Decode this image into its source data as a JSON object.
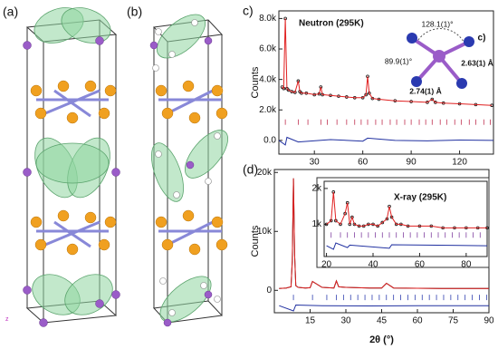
{
  "panels": {
    "a": "(a)",
    "b": "(b)",
    "c": "c)",
    "d": "(d)"
  },
  "chart_data": [
    {
      "type": "line",
      "title": "Neutron (295K)",
      "ylabel": "Counts",
      "annotations": [
        "128.1(1)°",
        "89.9(1)°",
        "2.63(1) Å",
        "2.74(1) Å",
        "c)"
      ],
      "xlim": [
        8,
        141
      ],
      "ylim": [
        -900,
        8500
      ],
      "xticks": [
        30,
        60,
        90,
        120
      ],
      "yticks": [
        {
          "value": 0,
          "label": "0.0"
        },
        {
          "value": 2000,
          "label": "2.0k"
        },
        {
          "value": 4000,
          "label": "4.0k"
        },
        {
          "value": 6000,
          "label": "6.0k"
        },
        {
          "value": 8000,
          "label": "8.0k"
        }
      ],
      "series": [
        {
          "kind": "scatter",
          "color": "#111111",
          "x": [
            10,
            11,
            12,
            13,
            14,
            16,
            18,
            20,
            21,
            22,
            25,
            30,
            33,
            34,
            35,
            40,
            45,
            50,
            55,
            60,
            62,
            63,
            64,
            66,
            70,
            80,
            90,
            100,
            103,
            105,
            110,
            120,
            130,
            140
          ],
          "values": [
            3500,
            3400,
            8000,
            3400,
            3300,
            3200,
            3150,
            3900,
            3200,
            3100,
            3100,
            3000,
            3050,
            3500,
            3000,
            2950,
            2900,
            2850,
            2800,
            2800,
            3000,
            4200,
            3100,
            2750,
            2700,
            2600,
            2550,
            2500,
            2700,
            2500,
            2450,
            2400,
            2350,
            2300
          ]
        },
        {
          "kind": "line",
          "color": "#e02020",
          "x": [
            10,
            11,
            12,
            13,
            14,
            16,
            18,
            20,
            21,
            22,
            25,
            30,
            33,
            34,
            35,
            40,
            45,
            50,
            55,
            60,
            62,
            63,
            64,
            66,
            70,
            80,
            90,
            100,
            103,
            105,
            110,
            120,
            130,
            140
          ],
          "values": [
            3500,
            3400,
            8000,
            3400,
            3300,
            3200,
            3150,
            3900,
            3200,
            3100,
            3100,
            3000,
            3050,
            3500,
            3000,
            2950,
            2900,
            2850,
            2800,
            2800,
            3000,
            4200,
            3100,
            2750,
            2700,
            2600,
            2550,
            2500,
            2700,
            2500,
            2450,
            2400,
            2350,
            2300
          ]
        },
        {
          "kind": "ticks",
          "color": "#c03050",
          "x": [
            12,
            20,
            26,
            34,
            38,
            44,
            50,
            55,
            59,
            63,
            68,
            72,
            77,
            81,
            86,
            90,
            95,
            99,
            103,
            108,
            112,
            117,
            121,
            126,
            130,
            135,
            139
          ],
          "values": [
            1200,
            1200,
            1200,
            1200,
            1200,
            1200,
            1200,
            1200,
            1200,
            1200,
            1200,
            1200,
            1200,
            1200,
            1200,
            1200,
            1200,
            1200,
            1200,
            1200,
            1200,
            1200,
            1200,
            1200,
            1200,
            1200,
            1200
          ]
        },
        {
          "kind": "line",
          "color": "#2030a0",
          "x": [
            8,
            12,
            13,
            20,
            40,
            60,
            63,
            80,
            100,
            120,
            141
          ],
          "values": [
            0,
            -300,
            200,
            -100,
            50,
            -50,
            150,
            0,
            -30,
            20,
            0
          ]
        }
      ]
    },
    {
      "type": "line",
      "ylabel": "Counts",
      "xlabel": "2θ (°)",
      "xlim": [
        0,
        90
      ],
      "ylim": [
        -3800,
        20500
      ],
      "xticks": [
        15,
        30,
        45,
        60,
        75,
        90
      ],
      "yticks": [
        0,
        {
          "value": 10000,
          "label": "10k"
        },
        {
          "value": 20000,
          "label": "20k"
        }
      ],
      "series": [
        {
          "kind": "line",
          "color": "#111111",
          "x": [
            2,
            5,
            7,
            7.5,
            8,
            8.5,
            9,
            10,
            13,
            15,
            16,
            20,
            25,
            26,
            27,
            30,
            35,
            40,
            45,
            47,
            50,
            60,
            70,
            80,
            90
          ],
          "values": [
            300,
            400,
            600,
            5000,
            19000,
            6000,
            800,
            500,
            400,
            450,
            1500,
            500,
            400,
            1600,
            600,
            500,
            450,
            400,
            400,
            1200,
            400,
            350,
            300,
            300,
            300
          ]
        },
        {
          "kind": "line",
          "color": "#e02020",
          "x": [
            2,
            5,
            7,
            7.5,
            8,
            8.5,
            9,
            10,
            13,
            15,
            16,
            20,
            25,
            26,
            27,
            30,
            35,
            40,
            45,
            47,
            50,
            60,
            70,
            80,
            90
          ],
          "values": [
            300,
            400,
            600,
            5000,
            19000,
            6000,
            800,
            500,
            400,
            450,
            1500,
            500,
            400,
            1600,
            600,
            500,
            450,
            400,
            400,
            1200,
            400,
            350,
            300,
            300,
            300
          ]
        },
        {
          "kind": "ticks",
          "color": "#3040b0",
          "x": [
            8,
            16,
            22,
            26,
            29,
            32,
            35,
            38,
            41,
            44,
            47,
            50,
            53,
            56,
            59,
            62,
            65,
            68,
            71,
            74,
            77,
            80,
            83,
            86,
            89
          ],
          "values": [
            -1200,
            -1200,
            -1200,
            -1200,
            -1200,
            -1200,
            -1200,
            -1200,
            -1200,
            -1200,
            -1200,
            -1200,
            -1200,
            -1200,
            -1200,
            -1200,
            -1200,
            -1200,
            -1200,
            -1200,
            -1200,
            -1200,
            -1200,
            -1200,
            -1200
          ]
        },
        {
          "kind": "line",
          "color": "#2030a0",
          "x": [
            2,
            8,
            9,
            20,
            40,
            60,
            90
          ],
          "values": [
            -2600,
            -3500,
            -2500,
            -2600,
            -2650,
            -2600,
            -2600
          ]
        }
      ]
    },
    {
      "type": "line",
      "title": "X-ray (295K)",
      "xlim": [
        19,
        89
      ],
      "ylim": [
        100,
        2200
      ],
      "xticks": [
        20,
        40,
        60,
        80
      ],
      "yticks": [
        {
          "value": 1000,
          "label": "1k"
        },
        {
          "value": 2000,
          "label": "2k"
        }
      ],
      "series": [
        {
          "kind": "scatter",
          "color": "#111111",
          "x": [
            20,
            22,
            23,
            24,
            26,
            28,
            29,
            30,
            31,
            32,
            34,
            36,
            38,
            40,
            42,
            44,
            46,
            47,
            48,
            50,
            52,
            55,
            60,
            65,
            70,
            75,
            80,
            85,
            89
          ],
          "values": [
            1000,
            1100,
            1900,
            1100,
            1000,
            1300,
            1600,
            1000,
            1200,
            1000,
            950,
            950,
            1000,
            1000,
            950,
            1050,
            1150,
            1500,
            1200,
            1000,
            1000,
            950,
            950,
            950,
            900,
            900,
            900,
            900,
            900
          ]
        },
        {
          "kind": "line",
          "color": "#e02020",
          "x": [
            20,
            22,
            23,
            24,
            26,
            28,
            29,
            30,
            31,
            32,
            34,
            36,
            38,
            40,
            42,
            44,
            46,
            47,
            48,
            50,
            52,
            55,
            60,
            65,
            70,
            75,
            80,
            85,
            89
          ],
          "values": [
            1000,
            1100,
            1900,
            1100,
            1000,
            1300,
            1600,
            1000,
            1200,
            1000,
            950,
            950,
            1000,
            1000,
            950,
            1050,
            1150,
            1500,
            1200,
            1000,
            1000,
            950,
            950,
            950,
            900,
            900,
            900,
            900,
            900
          ]
        },
        {
          "kind": "ticks",
          "color": "#8040a0",
          "x": [
            22,
            26,
            29,
            32,
            35,
            38,
            41,
            44,
            47,
            50,
            53,
            56,
            59,
            62,
            65,
            68,
            71,
            74,
            77,
            80,
            83,
            86
          ],
          "values": [
            700,
            700,
            700,
            700,
            700,
            700,
            700,
            700,
            700,
            700,
            700,
            700,
            700,
            700,
            700,
            700,
            700,
            700,
            700,
            700,
            700,
            700
          ]
        },
        {
          "kind": "line",
          "color": "#2030a0",
          "x": [
            20,
            23,
            24,
            29,
            30,
            47,
            48,
            89
          ],
          "values": [
            400,
            300,
            480,
            350,
            420,
            330,
            430,
            400
          ]
        }
      ]
    }
  ]
}
